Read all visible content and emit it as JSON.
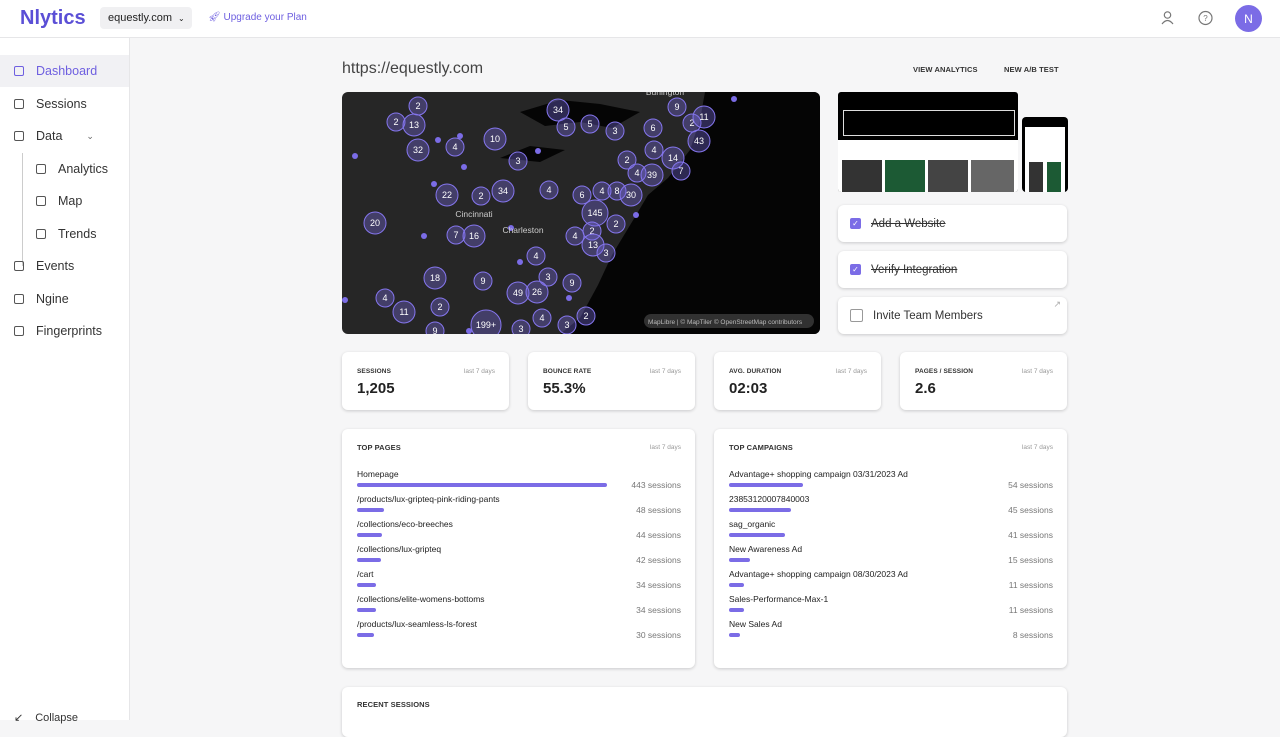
{
  "header": {
    "logo": "Nlytics",
    "site_select": "equestly.com",
    "upgrade": "Upgrade your Plan",
    "avatar": "N"
  },
  "sidebar": {
    "items": [
      "Dashboard",
      "Sessions",
      "Data",
      "Analytics",
      "Map",
      "Trends",
      "Events",
      "Ngine",
      "Fingerprints"
    ],
    "collapse": "Collapse"
  },
  "page": {
    "url": "https://equestly.com",
    "actions": [
      "VIEW ANALYTICS",
      "NEW A/B TEST"
    ]
  },
  "map": {
    "clusters": [
      "2",
      "2",
      "13",
      "32",
      "4",
      "10",
      "3",
      "34",
      "5",
      "5",
      "3",
      "6",
      "9",
      "2",
      "11",
      "43",
      "14",
      "4",
      "2",
      "4",
      "39",
      "7",
      "22",
      "2",
      "34",
      "4",
      "6",
      "4",
      "8",
      "30",
      "145",
      "2",
      "2",
      "4",
      "13",
      "3",
      "20",
      "7",
      "16",
      "4",
      "18",
      "9",
      "3",
      "9",
      "49",
      "26",
      "4",
      "11",
      "2",
      "199+",
      "4",
      "2",
      "3",
      "3",
      "9"
    ],
    "places": [
      "Burlington",
      "Cincinnati",
      "Charleston"
    ],
    "attribution": "MapLibre | © MapTiler © OpenStreetMap contributors"
  },
  "checklist": [
    {
      "label": "Add a Website",
      "done": true
    },
    {
      "label": "Verify Integration",
      "done": true
    },
    {
      "label": "Invite Team Members",
      "done": false
    }
  ],
  "stats": [
    {
      "label": "SESSIONS",
      "period": "last 7 days",
      "value": "1,205"
    },
    {
      "label": "BOUNCE RATE",
      "period": "last 7 days",
      "value": "55.3%"
    },
    {
      "label": "AVG. DURATION",
      "period": "last 7 days",
      "value": "02:03"
    },
    {
      "label": "PAGES / SESSION",
      "period": "last 7 days",
      "value": "2.6"
    }
  ],
  "top_pages": {
    "title": "TOP PAGES",
    "period": "last 7 days",
    "rows": [
      {
        "name": "Homepage",
        "sessions": 443,
        "label": "443 sessions"
      },
      {
        "name": "/products/lux-gripteq-pink-riding-pants",
        "sessions": 48,
        "label": "48 sessions"
      },
      {
        "name": "/collections/eco-breeches",
        "sessions": 44,
        "label": "44 sessions"
      },
      {
        "name": "/collections/lux-gripteq",
        "sessions": 42,
        "label": "42 sessions"
      },
      {
        "name": "/cart",
        "sessions": 34,
        "label": "34 sessions"
      },
      {
        "name": "/collections/elite-womens-bottoms",
        "sessions": 34,
        "label": "34 sessions"
      },
      {
        "name": "/products/lux-seamless-ls-forest",
        "sessions": 30,
        "label": "30 sessions"
      }
    ]
  },
  "top_campaigns": {
    "title": "TOP CAMPAIGNS",
    "period": "last 7 days",
    "rows": [
      {
        "name": "Advantage+ shopping campaign 03/31/2023 Ad",
        "sessions": 54,
        "label": "54 sessions"
      },
      {
        "name": "23853120007840003",
        "sessions": 45,
        "label": "45 sessions"
      },
      {
        "name": "sag_organic",
        "sessions": 41,
        "label": "41 sessions"
      },
      {
        "name": "New Awareness Ad",
        "sessions": 15,
        "label": "15 sessions"
      },
      {
        "name": "Advantage+ shopping campaign 08/30/2023 Ad",
        "sessions": 11,
        "label": "11 sessions"
      },
      {
        "name": "Sales-Performance-Max-1",
        "sessions": 11,
        "label": "11 sessions"
      },
      {
        "name": "New Sales Ad",
        "sessions": 8,
        "label": "8 sessions"
      }
    ]
  },
  "recent_sessions": {
    "title": "RECENT SESSIONS"
  }
}
